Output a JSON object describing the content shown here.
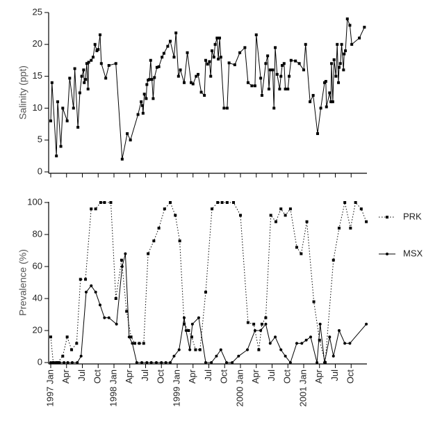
{
  "chart_data": [
    {
      "type": "line",
      "y_label": "Salinity (ppt)",
      "color": "#000000",
      "marker": "square",
      "xlim": [
        1997,
        2002
      ],
      "ylim": [
        0,
        25
      ],
      "yticks": [
        0,
        5,
        10,
        15,
        20,
        25
      ],
      "x": [
        1997.0,
        1997.02,
        1997.09,
        1997.11,
        1997.16,
        1997.19,
        1997.26,
        1997.3,
        1997.36,
        1997.38,
        1997.43,
        1997.46,
        1997.49,
        1997.52,
        1997.53,
        1997.55,
        1997.57,
        1997.59,
        1997.6,
        1997.64,
        1997.67,
        1997.7,
        1997.73,
        1997.75,
        1997.78,
        1997.8,
        1997.87,
        1997.92,
        1998.03,
        1998.13,
        1998.21,
        1998.26,
        1998.38,
        1998.43,
        1998.45,
        1998.46,
        1998.48,
        1998.51,
        1998.52,
        1998.54,
        1998.56,
        1998.58,
        1998.6,
        1998.62,
        1998.64,
        1998.68,
        1998.71,
        1998.76,
        1998.79,
        1998.85,
        1998.89,
        1998.95,
        1998.98,
        1999.02,
        1999.05,
        1999.11,
        1999.16,
        1999.22,
        1999.25,
        1999.3,
        1999.33,
        1999.38,
        1999.43,
        1999.45,
        1999.48,
        1999.51,
        1999.53,
        1999.55,
        1999.58,
        1999.6,
        1999.63,
        1999.65,
        1999.67,
        1999.69,
        1999.74,
        1999.79,
        1999.82,
        1999.91,
        1999.99,
        2000.07,
        2000.12,
        2000.18,
        2000.23,
        2000.25,
        2000.32,
        2000.34,
        2000.4,
        2000.43,
        2000.45,
        2000.47,
        2000.51,
        2000.53,
        2000.55,
        2000.58,
        2000.62,
        2000.64,
        2000.66,
        2000.69,
        2000.71,
        2000.75,
        2000.77,
        2000.8,
        2000.87,
        2000.93,
        2001.0,
        2001.03,
        2001.1,
        2001.15,
        2001.22,
        2001.27,
        2001.33,
        2001.35,
        2001.36,
        2001.41,
        2001.43,
        2001.44,
        2001.46,
        2001.48,
        2001.51,
        2001.53,
        2001.55,
        2001.56,
        2001.58,
        2001.6,
        2001.63,
        2001.64,
        2001.66,
        2001.69,
        2001.73,
        2001.76,
        2001.88,
        2001.96
      ],
      "values": [
        8,
        14,
        2.5,
        11,
        4,
        10,
        8,
        14.7,
        10,
        16.2,
        7,
        12.4,
        15,
        16,
        14,
        14.5,
        17,
        13,
        17.2,
        17.5,
        18,
        20,
        19,
        19.2,
        21.5,
        17,
        14.7,
        16.7,
        17,
        2,
        6,
        5,
        9,
        11,
        10.4,
        9.2,
        12.2,
        11.5,
        13.7,
        14.4,
        14.5,
        17.5,
        14.5,
        11.5,
        14.8,
        16.4,
        16.5,
        18,
        18.6,
        19.7,
        20.5,
        18,
        21.8,
        15,
        16,
        14,
        18.7,
        14,
        13.8,
        15,
        15.3,
        12.5,
        12,
        17.5,
        16.9,
        17.3,
        15,
        19,
        18,
        20,
        21,
        17.7,
        21,
        18,
        10,
        10,
        17.1,
        16.8,
        18.7,
        19.5,
        14,
        13.5,
        13.5,
        21.5,
        14.7,
        12,
        17,
        18.2,
        13,
        16,
        16,
        10,
        19.5,
        15.3,
        13,
        15,
        16.7,
        17,
        13,
        13,
        15,
        17.5,
        17.4,
        17,
        16,
        20,
        11,
        12,
        6,
        10,
        14,
        14.2,
        10.2,
        12.4,
        11,
        17,
        11,
        17.6,
        15,
        20,
        14,
        16.4,
        17,
        20,
        16,
        18.5,
        19,
        24,
        23,
        20,
        21,
        22.7
      ]
    },
    {
      "type": "line",
      "y_label": "Prevalence (%)",
      "xlim": [
        1997,
        2002
      ],
      "ylim": [
        0,
        100
      ],
      "yticks": [
        0,
        20,
        40,
        60,
        80,
        100
      ],
      "xticks": [
        {
          "value": 1997.0,
          "label": "1997 Jan"
        },
        {
          "value": 1997.25,
          "label": "Apr"
        },
        {
          "value": 1997.5,
          "label": "Jul"
        },
        {
          "value": 1997.75,
          "label": "Oct"
        },
        {
          "value": 1998.0,
          "label": "1998 Jan"
        },
        {
          "value": 1998.25,
          "label": "Apr"
        },
        {
          "value": 1998.5,
          "label": "Jul"
        },
        {
          "value": 1998.75,
          "label": "Oct"
        },
        {
          "value": 1999.0,
          "label": "1999 Jan"
        },
        {
          "value": 1999.25,
          "label": "Apr"
        },
        {
          "value": 1999.5,
          "label": "Jul"
        },
        {
          "value": 1999.75,
          "label": "Oct"
        },
        {
          "value": 2000.0,
          "label": "2000 Jan"
        },
        {
          "value": 2000.25,
          "label": "Apr"
        },
        {
          "value": 2000.5,
          "label": "Jul"
        },
        {
          "value": 2000.75,
          "label": "Oct"
        },
        {
          "value": 2001.0,
          "label": "2001 Jan"
        },
        {
          "value": 2001.25,
          "label": "Apr"
        },
        {
          "value": 2001.5,
          "label": "Jul"
        },
        {
          "value": 2001.75,
          "label": "Oct"
        }
      ],
      "series": [
        {
          "name": "PRK",
          "color": "#000000",
          "line_style": "dotted",
          "marker": "square",
          "x": [
            1997.0,
            1997.04,
            1997.11,
            1997.19,
            1997.26,
            1997.33,
            1997.41,
            1997.47,
            1997.55,
            1997.64,
            1997.71,
            1997.79,
            1997.85,
            1997.95,
            1998.03,
            1998.12,
            1998.2,
            1998.27,
            1998.33,
            1998.4,
            1998.47,
            1998.54,
            1998.63,
            1998.71,
            1998.8,
            1998.89,
            1998.97,
            1999.04,
            1999.11,
            1999.18,
            1999.23,
            1999.29,
            1999.36,
            1999.45,
            1999.55,
            1999.64,
            1999.71,
            1999.79,
            1999.89,
            2000.0,
            2000.12,
            2000.21,
            2000.29,
            2000.34,
            2000.4,
            2000.48,
            2000.56,
            2000.64,
            2000.71,
            2000.79,
            2000.89,
            2000.96,
            2001.05,
            2001.16,
            2001.25,
            2001.34,
            2001.47,
            2001.56,
            2001.65,
            2001.74,
            2001.82,
            2001.91,
            2001.99
          ],
          "values": [
            16,
            0,
            0,
            4,
            16,
            8,
            12,
            52,
            52,
            96,
            96,
            100,
            100,
            100,
            40,
            64,
            32,
            16,
            12,
            12,
            12,
            68,
            76,
            84,
            96,
            100,
            92,
            76,
            24,
            20,
            16,
            8,
            8,
            44,
            96,
            100,
            100,
            100,
            100,
            92,
            25,
            24,
            8,
            24,
            28,
            92,
            88,
            96,
            92,
            96,
            72,
            68,
            88,
            38,
            14,
            0,
            64,
            84,
            100,
            84,
            100,
            96,
            88
          ]
        },
        {
          "name": "MSX",
          "color": "#000000",
          "line_style": "solid",
          "marker": "circle",
          "x": [
            1997.0,
            1997.08,
            1997.14,
            1997.21,
            1997.27,
            1997.34,
            1997.42,
            1997.48,
            1997.56,
            1997.64,
            1997.71,
            1997.78,
            1997.85,
            1997.92,
            1998.04,
            1998.13,
            1998.18,
            1998.24,
            1998.29,
            1998.36,
            1998.44,
            1998.52,
            1998.59,
            1998.67,
            1998.75,
            1998.82,
            1998.89,
            1998.95,
            1999.03,
            1999.11,
            1999.14,
            1999.2,
            1999.24,
            1999.34,
            1999.45,
            1999.54,
            1999.62,
            1999.69,
            1999.78,
            1999.87,
            1999.97,
            2000.11,
            2000.23,
            2000.32,
            2000.4,
            2000.47,
            2000.55,
            2000.64,
            2000.71,
            2000.79,
            2000.89,
            2000.97,
            2001.04,
            2001.11,
            2001.21,
            2001.26,
            2001.33,
            2001.41,
            2001.47,
            2001.56,
            2001.65,
            2001.73,
            2001.99
          ],
          "values": [
            0,
            0,
            0,
            0,
            0,
            0,
            0,
            4,
            44,
            48,
            44,
            36,
            28,
            28,
            24,
            60,
            68,
            16,
            12,
            0,
            0,
            0,
            0,
            0,
            0,
            0,
            0,
            4,
            8,
            28,
            20,
            8,
            24,
            28,
            0,
            0,
            4,
            8,
            0,
            0,
            4,
            8,
            20,
            20,
            24,
            12,
            16,
            8,
            4,
            0,
            12,
            12,
            14,
            16,
            0,
            24,
            0,
            16,
            4,
            20,
            12,
            12,
            24
          ]
        }
      ]
    }
  ]
}
